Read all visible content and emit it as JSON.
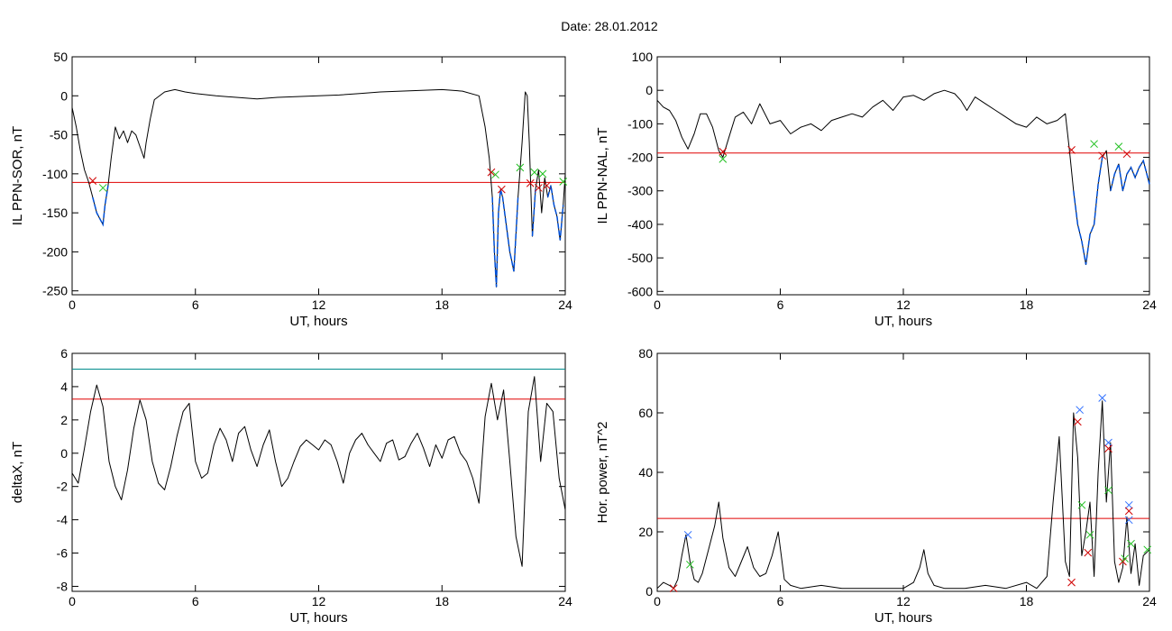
{
  "figure": {
    "title": "Date:  28.01.2012"
  },
  "colors": {
    "trace": "#000000",
    "threshold": "#e00000",
    "threshold_alt": "#008b8b",
    "highlight": "#0050d8",
    "marker_red": "#d00000",
    "marker_green": "#20c020",
    "marker_blue": "#3070ff"
  },
  "chart_data": [
    {
      "type": "line",
      "panel": "top-left",
      "xlabel": "UT, hours",
      "ylabel": "IL PPN-SOR, nT",
      "xlim": [
        0,
        24
      ],
      "ylim": [
        -255,
        50
      ],
      "xticks": [
        0,
        6,
        12,
        18,
        24
      ],
      "xticklabels": [
        "0",
        "6",
        "12",
        "18",
        "24"
      ],
      "yticks": [
        -250,
        -200,
        -150,
        -100,
        -50,
        0,
        50
      ],
      "yticklabels": [
        "-250",
        "-200",
        "-150",
        "-100",
        "-50",
        "0",
        "50"
      ],
      "threshold": -111,
      "series": [
        {
          "x": [
            0,
            0.2,
            0.4,
            0.6,
            0.8,
            1.0,
            1.2,
            1.4,
            1.5,
            1.6,
            1.75,
            1.9,
            2.1,
            2.3,
            2.5,
            2.7,
            2.9,
            3.1,
            3.3,
            3.5,
            3.6,
            3.8,
            4.0,
            4.5,
            5.0,
            5.5,
            6.0,
            7.0,
            8.0,
            9.0,
            10.0,
            11.0,
            12.0,
            13.0,
            14.0,
            15.0,
            16.0,
            17.0,
            18.0,
            19.0,
            19.8,
            20.1,
            20.3,
            20.45,
            20.55,
            20.65,
            20.75,
            20.85,
            20.95,
            21.1,
            21.3,
            21.5,
            21.7,
            21.9,
            22.05,
            22.15,
            22.25,
            22.4,
            22.55,
            22.7,
            22.85,
            23.0,
            23.15,
            23.3,
            23.45,
            23.6,
            23.75,
            23.9,
            24.0
          ],
          "y": [
            -15,
            -40,
            -70,
            -95,
            -110,
            -130,
            -150,
            -160,
            -165,
            -140,
            -115,
            -80,
            -40,
            -55,
            -45,
            -60,
            -45,
            -50,
            -65,
            -80,
            -60,
            -30,
            -5,
            5,
            8,
            5,
            3,
            0,
            -2,
            -4,
            -2,
            -1,
            0,
            1,
            3,
            5,
            6,
            7,
            8,
            6,
            0,
            -40,
            -80,
            -130,
            -200,
            -245,
            -150,
            -120,
            -130,
            -160,
            -200,
            -225,
            -130,
            -60,
            5,
            0,
            -60,
            -180,
            -120,
            -95,
            -150,
            -105,
            -130,
            -115,
            -140,
            -155,
            -185,
            -140,
            -100
          ]
        }
      ],
      "markers": [
        {
          "x": 1.0,
          "y": -109,
          "color": "red"
        },
        {
          "x": 1.5,
          "y": -118,
          "color": "green"
        },
        {
          "x": 20.4,
          "y": -98,
          "color": "red"
        },
        {
          "x": 20.6,
          "y": -101,
          "color": "green"
        },
        {
          "x": 20.9,
          "y": -120,
          "color": "red"
        },
        {
          "x": 21.8,
          "y": -92,
          "color": "green"
        },
        {
          "x": 22.3,
          "y": -112,
          "color": "red"
        },
        {
          "x": 22.5,
          "y": -98,
          "color": "green"
        },
        {
          "x": 22.7,
          "y": -118,
          "color": "red"
        },
        {
          "x": 22.9,
          "y": -100,
          "color": "green"
        },
        {
          "x": 23.1,
          "y": -115,
          "color": "red"
        },
        {
          "x": 23.9,
          "y": -110,
          "color": "green"
        }
      ]
    },
    {
      "type": "line",
      "panel": "top-right",
      "xlabel": "UT, hours",
      "ylabel": "IL PPN-NAL, nT",
      "xlim": [
        0,
        24
      ],
      "ylim": [
        -610,
        100
      ],
      "xticks": [
        0,
        6,
        12,
        18,
        24
      ],
      "xticklabels": [
        "0",
        "6",
        "12",
        "18",
        "24"
      ],
      "yticks": [
        -600,
        -500,
        -400,
        -300,
        -200,
        -100,
        0,
        100
      ],
      "yticklabels": [
        "-600",
        "-500",
        "-400",
        "-300",
        "-200",
        "-100",
        "0",
        "100"
      ],
      "threshold": -187,
      "series": [
        {
          "x": [
            0,
            0.3,
            0.6,
            0.9,
            1.2,
            1.5,
            1.8,
            2.1,
            2.4,
            2.7,
            3.0,
            3.2,
            3.5,
            3.8,
            4.2,
            4.6,
            5.0,
            5.5,
            6.0,
            6.5,
            7.0,
            7.5,
            8.0,
            8.5,
            9.0,
            9.5,
            10.0,
            10.5,
            11.0,
            11.5,
            12.0,
            12.5,
            13.0,
            13.5,
            14.0,
            14.5,
            14.8,
            15.1,
            15.5,
            16.0,
            16.5,
            17.0,
            17.5,
            18.0,
            18.5,
            19.0,
            19.5,
            19.9,
            20.1,
            20.3,
            20.5,
            20.7,
            20.9,
            21.1,
            21.3,
            21.5,
            21.7,
            21.9,
            22.1,
            22.3,
            22.5,
            22.7,
            22.9,
            23.1,
            23.3,
            23.5,
            23.7,
            24.0
          ],
          "y": [
            -30,
            -50,
            -60,
            -90,
            -140,
            -175,
            -130,
            -70,
            -70,
            -110,
            -180,
            -200,
            -140,
            -80,
            -65,
            -100,
            -40,
            -100,
            -90,
            -130,
            -110,
            -100,
            -120,
            -90,
            -80,
            -70,
            -80,
            -50,
            -30,
            -60,
            -20,
            -15,
            -30,
            -10,
            0,
            -10,
            -30,
            -60,
            -20,
            -40,
            -60,
            -80,
            -100,
            -110,
            -80,
            -100,
            -90,
            -70,
            -180,
            -300,
            -400,
            -450,
            -520,
            -430,
            -400,
            -280,
            -200,
            -180,
            -300,
            -250,
            -220,
            -300,
            -250,
            -230,
            -260,
            -230,
            -210,
            -280
          ]
        }
      ],
      "markers": [
        {
          "x": 3.2,
          "y": -183,
          "color": "red"
        },
        {
          "x": 3.2,
          "y": -205,
          "color": "green"
        },
        {
          "x": 20.2,
          "y": -178,
          "color": "red"
        },
        {
          "x": 21.3,
          "y": -160,
          "color": "green"
        },
        {
          "x": 21.7,
          "y": -195,
          "color": "red"
        },
        {
          "x": 22.5,
          "y": -168,
          "color": "green"
        },
        {
          "x": 22.9,
          "y": -190,
          "color": "red"
        }
      ]
    },
    {
      "type": "line",
      "panel": "bottom-left",
      "xlabel": "UT, hours",
      "ylabel": "deltaX, nT",
      "xlim": [
        0,
        24
      ],
      "ylim": [
        -8.3,
        6
      ],
      "xticks": [
        0,
        6,
        12,
        18,
        24
      ],
      "xticklabels": [
        "0",
        "6",
        "12",
        "18",
        "24"
      ],
      "yticks": [
        -8,
        -6,
        -4,
        -2,
        0,
        2,
        4,
        6
      ],
      "yticklabels": [
        "-8",
        "-6",
        "-4",
        "-2",
        "0",
        "2",
        "4",
        "6"
      ],
      "thresholds": [
        3.25,
        5.05
      ],
      "series": [
        {
          "x": [
            0,
            0.3,
            0.6,
            0.9,
            1.2,
            1.5,
            1.8,
            2.1,
            2.4,
            2.7,
            3.0,
            3.3,
            3.6,
            3.9,
            4.2,
            4.5,
            4.8,
            5.1,
            5.4,
            5.7,
            6.0,
            6.3,
            6.6,
            6.9,
            7.2,
            7.5,
            7.8,
            8.1,
            8.4,
            8.7,
            9.0,
            9.3,
            9.6,
            9.9,
            10.2,
            10.5,
            10.8,
            11.1,
            11.4,
            11.7,
            12.0,
            12.3,
            12.6,
            12.9,
            13.2,
            13.5,
            13.8,
            14.1,
            14.4,
            14.7,
            15.0,
            15.3,
            15.6,
            15.9,
            16.2,
            16.5,
            16.8,
            17.1,
            17.4,
            17.7,
            18.0,
            18.3,
            18.6,
            18.9,
            19.2,
            19.5,
            19.8,
            20.1,
            20.4,
            20.7,
            21.0,
            21.3,
            21.6,
            21.9,
            22.2,
            22.5,
            22.8,
            23.1,
            23.4,
            23.7,
            24.0
          ],
          "y": [
            -1.2,
            -1.8,
            0.3,
            2.5,
            4.1,
            2.8,
            -0.5,
            -2.0,
            -2.8,
            -1.0,
            1.5,
            3.2,
            2.0,
            -0.5,
            -1.8,
            -2.2,
            -0.8,
            1.0,
            2.5,
            3.0,
            -0.5,
            -1.5,
            -1.2,
            0.5,
            1.5,
            0.8,
            -0.5,
            1.2,
            1.6,
            0.2,
            -0.8,
            0.5,
            1.4,
            -0.5,
            -2.0,
            -1.5,
            -0.5,
            0.4,
            0.8,
            0.5,
            0.2,
            0.8,
            0.5,
            -0.5,
            -1.8,
            0.0,
            0.8,
            1.2,
            0.5,
            0.0,
            -0.5,
            0.6,
            0.8,
            -0.4,
            -0.2,
            0.6,
            1.2,
            0.3,
            -0.8,
            0.5,
            -0.3,
            0.8,
            1.0,
            0.0,
            -0.5,
            -1.5,
            -3.0,
            2.2,
            4.2,
            2.0,
            3.8,
            -0.5,
            -5.0,
            -6.8,
            2.5,
            4.6,
            -0.5,
            3.0,
            2.5,
            -1.5,
            -3.4
          ]
        }
      ]
    },
    {
      "type": "line",
      "panel": "bottom-right",
      "xlabel": "UT, hours",
      "ylabel": "Hor. power, nT^2",
      "xlim": [
        0,
        24
      ],
      "ylim": [
        0,
        80
      ],
      "xticks": [
        0,
        6,
        12,
        18,
        24
      ],
      "xticklabels": [
        "0",
        "6",
        "12",
        "18",
        "24"
      ],
      "yticks": [
        0,
        20,
        40,
        60,
        80
      ],
      "yticklabels": [
        "0",
        "20",
        "40",
        "60",
        "80"
      ],
      "threshold": 24.5,
      "series": [
        {
          "x": [
            0,
            0.3,
            0.6,
            0.8,
            1.0,
            1.2,
            1.4,
            1.6,
            1.8,
            2.0,
            2.2,
            2.5,
            2.8,
            3.0,
            3.2,
            3.5,
            3.8,
            4.1,
            4.4,
            4.7,
            5.0,
            5.3,
            5.6,
            5.9,
            6.2,
            6.5,
            7.0,
            8.0,
            9.0,
            10.0,
            11.0,
            12.0,
            12.5,
            12.8,
            13.0,
            13.2,
            13.5,
            14.0,
            15.0,
            16.0,
            17.0,
            18.0,
            18.5,
            19.0,
            19.3,
            19.6,
            19.9,
            20.1,
            20.3,
            20.5,
            20.7,
            20.9,
            21.1,
            21.3,
            21.5,
            21.7,
            21.9,
            22.1,
            22.3,
            22.5,
            22.7,
            22.9,
            23.1,
            23.3,
            23.5,
            23.7,
            24.0
          ],
          "y": [
            1,
            3,
            2,
            1,
            4,
            12,
            19,
            10,
            4,
            3,
            6,
            14,
            22,
            30,
            18,
            8,
            5,
            10,
            15,
            8,
            5,
            6,
            12,
            20,
            4,
            2,
            1,
            2,
            1,
            1,
            1,
            1,
            3,
            8,
            14,
            6,
            2,
            1,
            1,
            2,
            1,
            3,
            1,
            5,
            30,
            52,
            10,
            5,
            60,
            45,
            12,
            20,
            30,
            5,
            40,
            64,
            30,
            50,
            10,
            3,
            8,
            25,
            6,
            16,
            2,
            12,
            14
          ]
        }
      ],
      "markers": [
        {
          "x": 0.8,
          "y": 1,
          "color": "red"
        },
        {
          "x": 1.5,
          "y": 19,
          "color": "blue"
        },
        {
          "x": 1.6,
          "y": 9,
          "color": "green"
        },
        {
          "x": 20.2,
          "y": 3,
          "color": "red"
        },
        {
          "x": 20.5,
          "y": 57,
          "color": "red"
        },
        {
          "x": 20.6,
          "y": 61,
          "color": "blue"
        },
        {
          "x": 20.7,
          "y": 29,
          "color": "green"
        },
        {
          "x": 21.0,
          "y": 13,
          "color": "red"
        },
        {
          "x": 21.1,
          "y": 19,
          "color": "green"
        },
        {
          "x": 21.7,
          "y": 65,
          "color": "blue"
        },
        {
          "x": 22.0,
          "y": 50,
          "color": "blue"
        },
        {
          "x": 22.0,
          "y": 48,
          "color": "red"
        },
        {
          "x": 22.0,
          "y": 34,
          "color": "green"
        },
        {
          "x": 22.7,
          "y": 10,
          "color": "red"
        },
        {
          "x": 22.8,
          "y": 11,
          "color": "green"
        },
        {
          "x": 23.0,
          "y": 29,
          "color": "blue"
        },
        {
          "x": 23.0,
          "y": 27,
          "color": "red"
        },
        {
          "x": 23.0,
          "y": 24,
          "color": "blue"
        },
        {
          "x": 23.1,
          "y": 16,
          "color": "green"
        },
        {
          "x": 23.9,
          "y": 14,
          "color": "green"
        }
      ]
    }
  ]
}
